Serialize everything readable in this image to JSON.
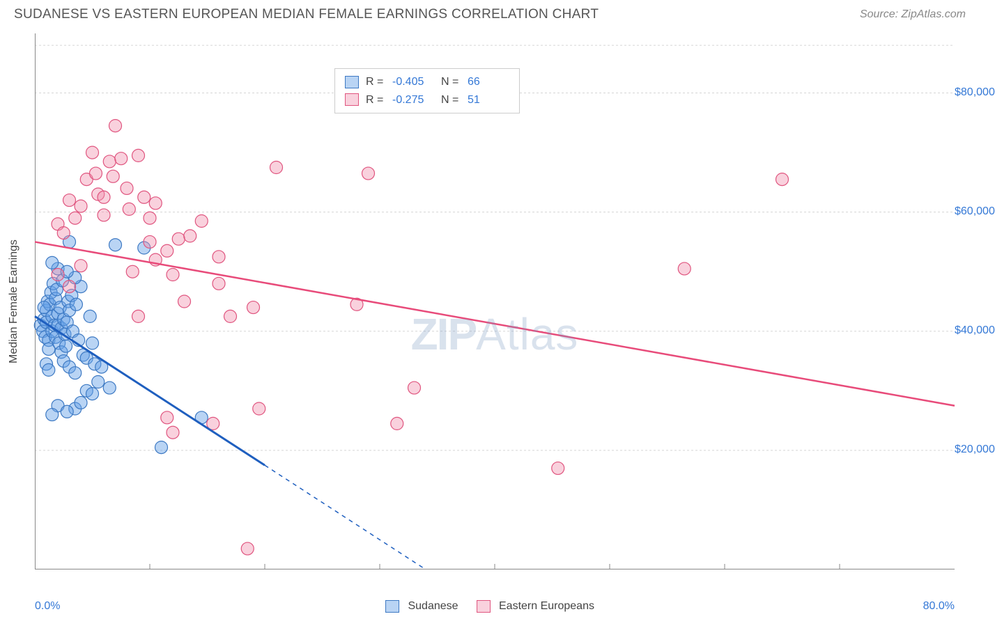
{
  "header": {
    "title": "SUDANESE VS EASTERN EUROPEAN MEDIAN FEMALE EARNINGS CORRELATION CHART",
    "source": "Source: ZipAtlas.com"
  },
  "chart": {
    "type": "scatter",
    "title_fontsize": 19,
    "title_color": "#555555",
    "source_color": "#888888",
    "background_color": "#ffffff",
    "plot_border_color": "#888888",
    "plot_border_width": 1,
    "grid_color": "#d5d5d5",
    "grid_dash": "3,3",
    "y_axis_label": "Median Female Earnings",
    "y_axis_label_fontsize": 16,
    "y_axis_label_color": "#444444",
    "xlim": [
      0,
      80
    ],
    "ylim": [
      0,
      90000
    ],
    "x_range_start_label": "0.0%",
    "x_range_end_label": "80.0%",
    "x_range_label_color": "#3478d6",
    "x_ticks": [
      10,
      20,
      30,
      40,
      50,
      60,
      70
    ],
    "y_ticks": [
      {
        "v": 20000,
        "label": "$20,000"
      },
      {
        "v": 40000,
        "label": "$40,000"
      },
      {
        "v": 60000,
        "label": "$60,000"
      },
      {
        "v": 80000,
        "label": "$80,000"
      }
    ],
    "y_tick_color": "#3478d6",
    "tick_mark_color": "#888888",
    "tick_mark_len": 8,
    "watermark_text_1": "ZIP",
    "watermark_text_2": "Atlas",
    "watermark_color": "rgba(120,150,190,0.28)",
    "series": [
      {
        "name": "Sudanese",
        "marker_fill": "rgba(100,160,230,0.45)",
        "marker_stroke": "#3d79c3",
        "marker_stroke_width": 1.2,
        "marker_radius": 9,
        "line_color": "#1f5fbf",
        "line_width": 3,
        "line_dash_ext": "6,6",
        "trend": {
          "x1": 0,
          "y1": 42500,
          "x2": 20,
          "y2": 17500,
          "ext_x2": 34,
          "ext_y2": 0
        },
        "legend": {
          "R": "-0.405",
          "N": "66"
        },
        "points": [
          {
            "x": 0.5,
            "y": 41000
          },
          {
            "x": 0.7,
            "y": 40000
          },
          {
            "x": 0.8,
            "y": 42000
          },
          {
            "x": 0.9,
            "y": 39000
          },
          {
            "x": 1.0,
            "y": 43500
          },
          {
            "x": 1.0,
            "y": 41500
          },
          {
            "x": 1.1,
            "y": 45000
          },
          {
            "x": 1.2,
            "y": 38500
          },
          {
            "x": 1.2,
            "y": 37000
          },
          {
            "x": 1.3,
            "y": 44500
          },
          {
            "x": 1.4,
            "y": 46500
          },
          {
            "x": 1.5,
            "y": 40000
          },
          {
            "x": 1.5,
            "y": 42500
          },
          {
            "x": 1.6,
            "y": 48000
          },
          {
            "x": 1.7,
            "y": 41000
          },
          {
            "x": 1.8,
            "y": 45500
          },
          {
            "x": 1.8,
            "y": 39000
          },
          {
            "x": 1.9,
            "y": 47000
          },
          {
            "x": 2.0,
            "y": 43000
          },
          {
            "x": 2.0,
            "y": 41000
          },
          {
            "x": 2.1,
            "y": 38000
          },
          {
            "x": 2.2,
            "y": 44000
          },
          {
            "x": 2.3,
            "y": 40500
          },
          {
            "x": 2.3,
            "y": 36500
          },
          {
            "x": 2.4,
            "y": 48500
          },
          {
            "x": 2.5,
            "y": 42000
          },
          {
            "x": 2.5,
            "y": 35000
          },
          {
            "x": 2.6,
            "y": 39500
          },
          {
            "x": 2.7,
            "y": 37500
          },
          {
            "x": 2.8,
            "y": 41500
          },
          {
            "x": 2.9,
            "y": 45000
          },
          {
            "x": 3.0,
            "y": 43500
          },
          {
            "x": 3.0,
            "y": 34000
          },
          {
            "x": 3.2,
            "y": 46000
          },
          {
            "x": 3.3,
            "y": 40000
          },
          {
            "x": 3.5,
            "y": 33000
          },
          {
            "x": 3.6,
            "y": 44500
          },
          {
            "x": 3.8,
            "y": 38500
          },
          {
            "x": 4.0,
            "y": 47500
          },
          {
            "x": 4.2,
            "y": 36000
          },
          {
            "x": 4.5,
            "y": 30000
          },
          {
            "x": 4.5,
            "y": 35500
          },
          {
            "x": 4.8,
            "y": 42500
          },
          {
            "x": 5.0,
            "y": 29500
          },
          {
            "x": 5.2,
            "y": 34500
          },
          {
            "x": 5.5,
            "y": 31500
          },
          {
            "x": 2.0,
            "y": 50500
          },
          {
            "x": 1.5,
            "y": 51500
          },
          {
            "x": 3.5,
            "y": 49000
          },
          {
            "x": 2.8,
            "y": 50000
          },
          {
            "x": 1.0,
            "y": 34500
          },
          {
            "x": 1.2,
            "y": 33500
          },
          {
            "x": 3.5,
            "y": 27000
          },
          {
            "x": 4.0,
            "y": 28000
          },
          {
            "x": 2.0,
            "y": 27500
          },
          {
            "x": 2.8,
            "y": 26500
          },
          {
            "x": 1.5,
            "y": 26000
          },
          {
            "x": 5.0,
            "y": 38000
          },
          {
            "x": 5.8,
            "y": 34000
          },
          {
            "x": 6.5,
            "y": 30500
          },
          {
            "x": 7.0,
            "y": 54500
          },
          {
            "x": 9.5,
            "y": 54000
          },
          {
            "x": 11.0,
            "y": 20500
          },
          {
            "x": 14.5,
            "y": 25500
          },
          {
            "x": 3.0,
            "y": 55000
          },
          {
            "x": 0.8,
            "y": 44000
          }
        ]
      },
      {
        "name": "Eastern Europeans",
        "marker_fill": "rgba(240,140,170,0.40)",
        "marker_stroke": "#e0557f",
        "marker_stroke_width": 1.2,
        "marker_radius": 9,
        "line_color": "#e84b7a",
        "line_width": 2.5,
        "trend": {
          "x1": 0,
          "y1": 55000,
          "x2": 80,
          "y2": 27500
        },
        "legend": {
          "R": "-0.275",
          "N": "51"
        },
        "points": [
          {
            "x": 2.0,
            "y": 58000
          },
          {
            "x": 2.5,
            "y": 56500
          },
          {
            "x": 3.0,
            "y": 62000
          },
          {
            "x": 3.5,
            "y": 59000
          },
          {
            "x": 4.0,
            "y": 61000
          },
          {
            "x": 4.5,
            "y": 65500
          },
          {
            "x": 5.0,
            "y": 70000
          },
          {
            "x": 5.3,
            "y": 66500
          },
          {
            "x": 5.5,
            "y": 63000
          },
          {
            "x": 6.0,
            "y": 59500
          },
          {
            "x": 6.0,
            "y": 62500
          },
          {
            "x": 6.5,
            "y": 68500
          },
          {
            "x": 6.8,
            "y": 66000
          },
          {
            "x": 7.0,
            "y": 74500
          },
          {
            "x": 7.5,
            "y": 69000
          },
          {
            "x": 8.0,
            "y": 64000
          },
          {
            "x": 8.2,
            "y": 60500
          },
          {
            "x": 9.0,
            "y": 69500
          },
          {
            "x": 9.5,
            "y": 62500
          },
          {
            "x": 10.0,
            "y": 55000
          },
          {
            "x": 10.0,
            "y": 59000
          },
          {
            "x": 10.5,
            "y": 52000
          },
          {
            "x": 10.5,
            "y": 61500
          },
          {
            "x": 11.5,
            "y": 53500
          },
          {
            "x": 12.0,
            "y": 49500
          },
          {
            "x": 12.5,
            "y": 55500
          },
          {
            "x": 13.0,
            "y": 45000
          },
          {
            "x": 13.5,
            "y": 56000
          },
          {
            "x": 14.5,
            "y": 58500
          },
          {
            "x": 16.0,
            "y": 48000
          },
          {
            "x": 17.0,
            "y": 42500
          },
          {
            "x": 19.0,
            "y": 44000
          },
          {
            "x": 21.0,
            "y": 67500
          },
          {
            "x": 19.5,
            "y": 27000
          },
          {
            "x": 18.5,
            "y": 3500
          },
          {
            "x": 11.5,
            "y": 25500
          },
          {
            "x": 12.0,
            "y": 23000
          },
          {
            "x": 15.5,
            "y": 24500
          },
          {
            "x": 29.0,
            "y": 66500
          },
          {
            "x": 28.0,
            "y": 44500
          },
          {
            "x": 31.5,
            "y": 24500
          },
          {
            "x": 33.0,
            "y": 30500
          },
          {
            "x": 45.5,
            "y": 17000
          },
          {
            "x": 56.5,
            "y": 50500
          },
          {
            "x": 65.0,
            "y": 65500
          },
          {
            "x": 4.0,
            "y": 51000
          },
          {
            "x": 8.5,
            "y": 50000
          },
          {
            "x": 3.0,
            "y": 47500
          },
          {
            "x": 2.0,
            "y": 49500
          },
          {
            "x": 9.0,
            "y": 42500
          },
          {
            "x": 16.0,
            "y": 52500
          }
        ]
      }
    ],
    "top_legend": {
      "bg": "#ffffff",
      "border_color": "#cccccc",
      "label_color": "#444444",
      "value_color": "#3478d6",
      "R_label": "R =",
      "N_label": "N ="
    },
    "bottom_legend": {
      "label_color": "#444444",
      "swatch_size": 20
    }
  }
}
